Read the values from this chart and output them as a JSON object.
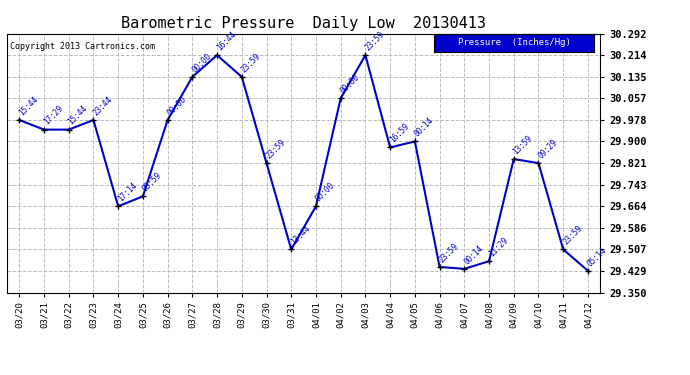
{
  "title": "Barometric Pressure  Daily Low  20130413",
  "copyright": "Copyright 2013 Cartronics.com",
  "legend_label": "Pressure  (Inches/Hg)",
  "background_color": "#ffffff",
  "plot_bg_color": "#ffffff",
  "line_color": "#0000cc",
  "marker_color": "#000000",
  "grid_color": "#bbbbbb",
  "ylim": [
    29.35,
    30.292
  ],
  "yticks": [
    29.35,
    29.429,
    29.507,
    29.586,
    29.664,
    29.743,
    29.821,
    29.9,
    29.978,
    30.057,
    30.135,
    30.214,
    30.292
  ],
  "x_labels": [
    "03/20",
    "03/21",
    "03/22",
    "03/23",
    "03/24",
    "03/25",
    "03/26",
    "03/27",
    "03/28",
    "03/29",
    "03/30",
    "03/31",
    "04/01",
    "04/02",
    "04/03",
    "04/04",
    "04/05",
    "04/06",
    "04/07",
    "04/08",
    "04/09",
    "04/10",
    "04/11",
    "04/12"
  ],
  "data_points": [
    {
      "date": "03/20",
      "time": "15:44",
      "value": 29.978
    },
    {
      "date": "03/21",
      "time": "17:29",
      "value": 29.943
    },
    {
      "date": "03/22",
      "time": "15:44",
      "value": 29.943
    },
    {
      "date": "03/23",
      "time": "23:44",
      "value": 29.978
    },
    {
      "date": "03/24",
      "time": "17:14",
      "value": 29.664
    },
    {
      "date": "03/25",
      "time": "05:59",
      "value": 29.7
    },
    {
      "date": "03/26",
      "time": "00:00",
      "value": 29.978
    },
    {
      "date": "03/27",
      "time": "00:00",
      "value": 30.135
    },
    {
      "date": "03/28",
      "time": "16:44",
      "value": 30.214
    },
    {
      "date": "03/29",
      "time": "23:59",
      "value": 30.135
    },
    {
      "date": "03/30",
      "time": "23:59",
      "value": 29.821
    },
    {
      "date": "03/31",
      "time": "13:44",
      "value": 29.507
    },
    {
      "date": "04/01",
      "time": "00:00",
      "value": 29.664
    },
    {
      "date": "04/02",
      "time": "00:00",
      "value": 30.057
    },
    {
      "date": "04/03",
      "time": "23:59",
      "value": 30.214
    },
    {
      "date": "04/04",
      "time": "16:59",
      "value": 29.878
    },
    {
      "date": "04/05",
      "time": "00:14",
      "value": 29.9
    },
    {
      "date": "04/06",
      "time": "23:59",
      "value": 29.443
    },
    {
      "date": "04/07",
      "time": "00:14",
      "value": 29.436
    },
    {
      "date": "04/08",
      "time": "11:29",
      "value": 29.464
    },
    {
      "date": "04/09",
      "time": "13:59",
      "value": 29.836
    },
    {
      "date": "04/10",
      "time": "09:29",
      "value": 29.821
    },
    {
      "date": "04/11",
      "time": "23:59",
      "value": 29.507
    },
    {
      "date": "04/12",
      "time": "05:14",
      "value": 29.429
    }
  ]
}
